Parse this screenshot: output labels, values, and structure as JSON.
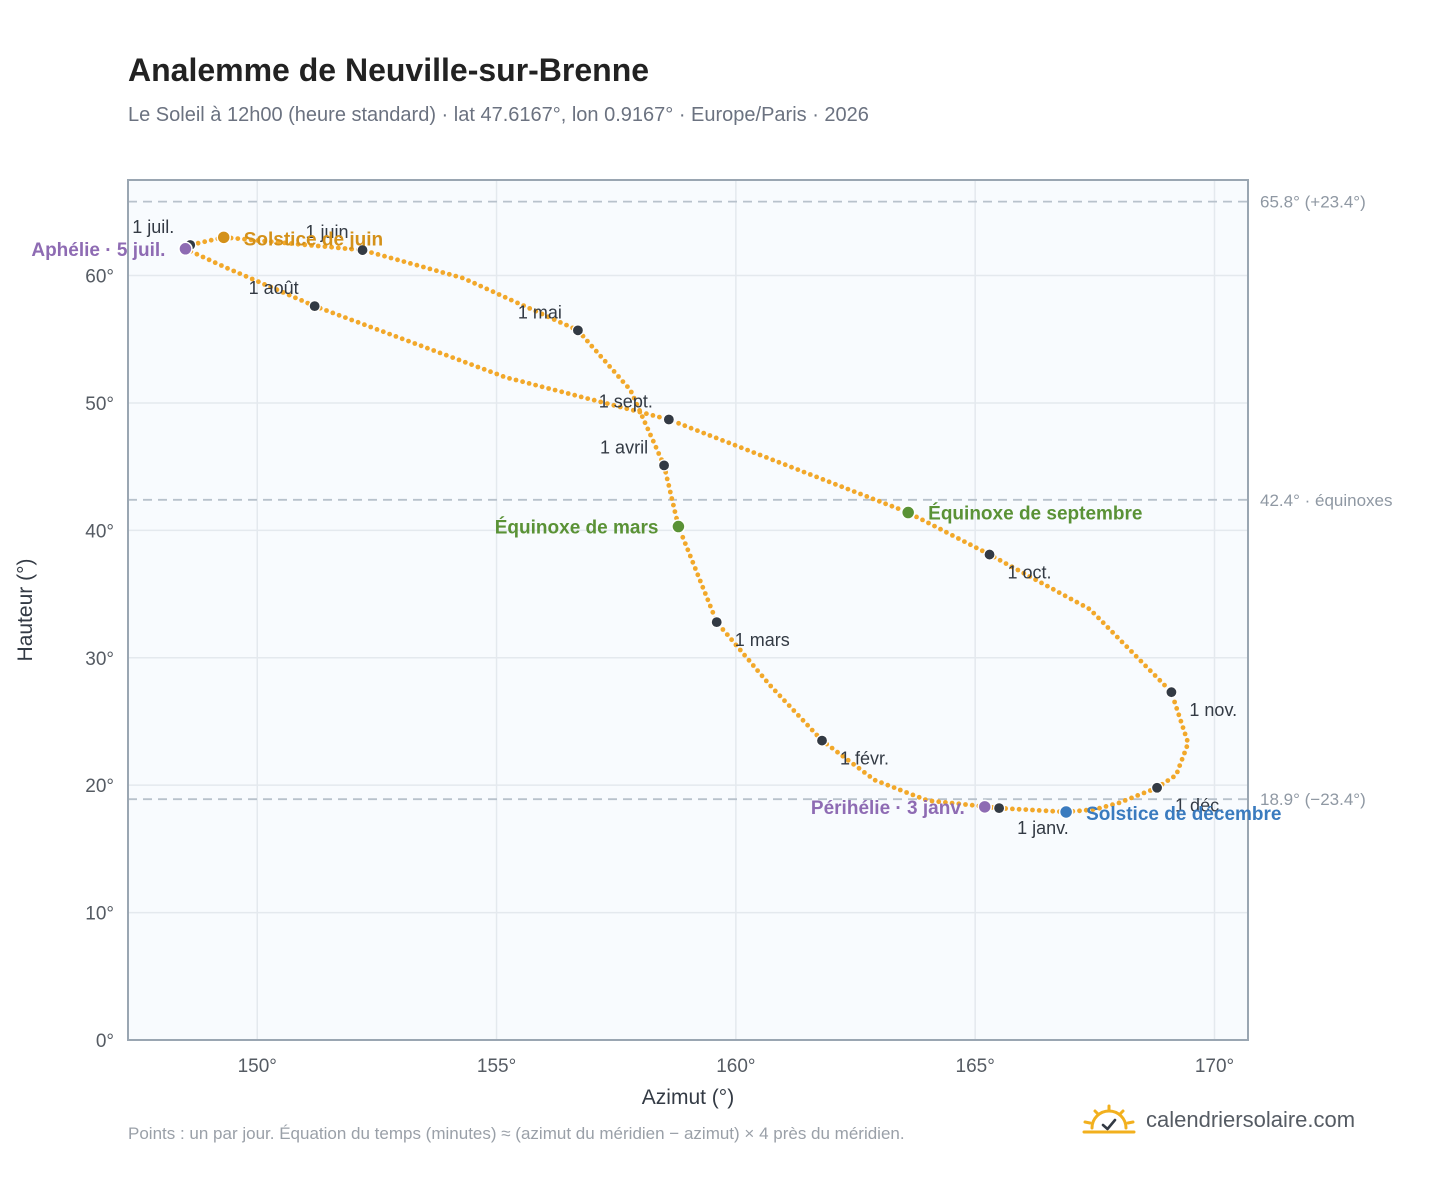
{
  "title": "Analemme de Neuville-sur-Brenne",
  "subtitle": "Le Soleil à 12h00 (heure standard) · lat 47.6167°, lon 0.9167° · Europe/Paris · 2026",
  "footnote": "Points : un par jour. Équation du temps (minutes) ≈ (azimut du méridien − azimut) × 4 près du méridien.",
  "brand": {
    "name": "calendriersolaire.com",
    "logo_icon": "sun-check-icon"
  },
  "colors": {
    "curve": "#f2a82a",
    "month_marker": "#333a44",
    "solstice_june": "#d4911a",
    "solstice_december": "#3a7bbf",
    "equinox": "#5a9236",
    "perihelion_aphelion": "#8e6bb3",
    "reference_line": "#b8c2cc",
    "plot_background": "#f8fbfe",
    "grid": "#e4e9ee",
    "axis_frame": "#9aa6b2"
  },
  "chart_data": {
    "type": "scatter",
    "title": "Analemme de Neuville-sur-Brenne",
    "xlabel": "Azimut (°)",
    "ylabel": "Hauteur (°)",
    "xlim": [
      147.3,
      170.7
    ],
    "ylim": [
      0,
      67.5
    ],
    "x_ticks": [
      150,
      155,
      160,
      165,
      170
    ],
    "x_tick_labels": [
      "150°",
      "155°",
      "160°",
      "165°",
      "170°"
    ],
    "y_ticks": [
      0,
      10,
      20,
      30,
      40,
      50,
      60
    ],
    "y_tick_labels": [
      "0°",
      "10°",
      "20°",
      "30°",
      "40°",
      "50°",
      "60°"
    ],
    "grid": true,
    "reference_lines": [
      {
        "y": 65.8,
        "label": "65.8° (+23.4°)"
      },
      {
        "y": 42.4,
        "label": "42.4° · équinoxes"
      },
      {
        "y": 18.9,
        "label": "18.9° (−23.4°)"
      }
    ],
    "daily_path": [
      [
        166.9,
        17.9
      ],
      [
        165.5,
        18.2
      ],
      [
        164.0,
        18.8
      ],
      [
        162.9,
        20.4
      ],
      [
        161.8,
        23.5
      ],
      [
        160.7,
        27.9
      ],
      [
        159.6,
        32.8
      ],
      [
        159.1,
        37.5
      ],
      [
        158.8,
        40.3
      ],
      [
        158.5,
        45.1
      ],
      [
        157.8,
        51.0
      ],
      [
        156.7,
        55.7
      ],
      [
        154.3,
        59.8
      ],
      [
        152.2,
        62.0
      ],
      [
        149.3,
        63.0
      ],
      [
        148.6,
        62.4
      ],
      [
        148.5,
        62.1
      ],
      [
        149.3,
        60.7
      ],
      [
        151.2,
        57.6
      ],
      [
        155.2,
        52.0
      ],
      [
        158.6,
        48.7
      ],
      [
        163.6,
        41.4
      ],
      [
        165.3,
        38.1
      ],
      [
        167.4,
        33.8
      ],
      [
        169.1,
        27.3
      ],
      [
        169.45,
        23.3
      ],
      [
        169.2,
        20.8
      ],
      [
        168.8,
        19.8
      ],
      [
        168.0,
        18.6
      ],
      [
        167.5,
        18.1
      ],
      [
        166.9,
        17.9
      ]
    ],
    "month_markers": [
      {
        "label": "1 janv.",
        "x": 165.5,
        "y": 18.2
      },
      {
        "label": "1 févr.",
        "x": 161.8,
        "y": 23.5
      },
      {
        "label": "1 mars",
        "x": 159.6,
        "y": 32.8
      },
      {
        "label": "1 avril",
        "x": 158.5,
        "y": 45.1
      },
      {
        "label": "1 mai",
        "x": 156.7,
        "y": 55.7
      },
      {
        "label": "1 juin",
        "x": 152.2,
        "y": 62.0
      },
      {
        "label": "1 juil.",
        "x": 148.6,
        "y": 62.4
      },
      {
        "label": "1 août",
        "x": 151.2,
        "y": 57.6
      },
      {
        "label": "1 sept.",
        "x": 158.6,
        "y": 48.7
      },
      {
        "label": "1 oct.",
        "x": 165.3,
        "y": 38.1
      },
      {
        "label": "1 nov.",
        "x": 169.1,
        "y": 27.3
      },
      {
        "label": "1 déc.",
        "x": 168.8,
        "y": 19.8
      }
    ],
    "events": [
      {
        "label": "Solstice de juin",
        "x": 149.3,
        "y": 63.0,
        "kind": "solstice_june"
      },
      {
        "label": "Aphélie · 5 juil.",
        "x": 148.5,
        "y": 62.1,
        "kind": "perihelion_aphelion"
      },
      {
        "label": "Équinoxe de mars",
        "x": 158.8,
        "y": 40.3,
        "kind": "equinox"
      },
      {
        "label": "Équinoxe de septembre",
        "x": 163.6,
        "y": 41.4,
        "kind": "equinox"
      },
      {
        "label": "Périhélie · 3 janv.",
        "x": 165.2,
        "y": 18.3,
        "kind": "perihelion_aphelion"
      },
      {
        "label": "Solstice de décembre",
        "x": 166.9,
        "y": 17.9,
        "kind": "solstice_december"
      }
    ]
  }
}
